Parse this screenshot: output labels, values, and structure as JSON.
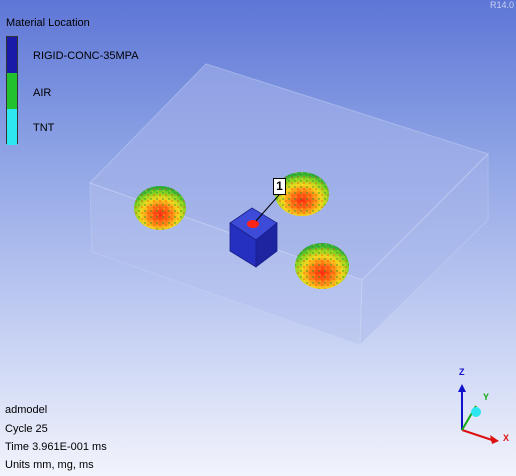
{
  "version": "R14.0",
  "legend": {
    "title": "Material Location",
    "items": [
      {
        "label": "RIGID-CONC-35MPA",
        "color": "#1a1aa8"
      },
      {
        "label": "AIR",
        "color": "#22c22e"
      },
      {
        "label": "TNT",
        "color": "#2ee6f0"
      }
    ]
  },
  "model": {
    "name": "admodel",
    "cycle": "Cycle 25",
    "time": "Time 3.961E-001 ms",
    "units": "Units mm, mg, ms"
  },
  "marker": {
    "label": "1"
  },
  "axes": {
    "x_label": "X",
    "y_label": "Y",
    "z_label": "Z",
    "x_color": "#dd1111",
    "y_color": "#11aa11",
    "z_color": "#1111cc"
  },
  "colors": {
    "background_top": "#5e76d6",
    "background_bottom": "#f2f4fc",
    "slab": "#9fb0e8",
    "block": "#2a33c8"
  }
}
